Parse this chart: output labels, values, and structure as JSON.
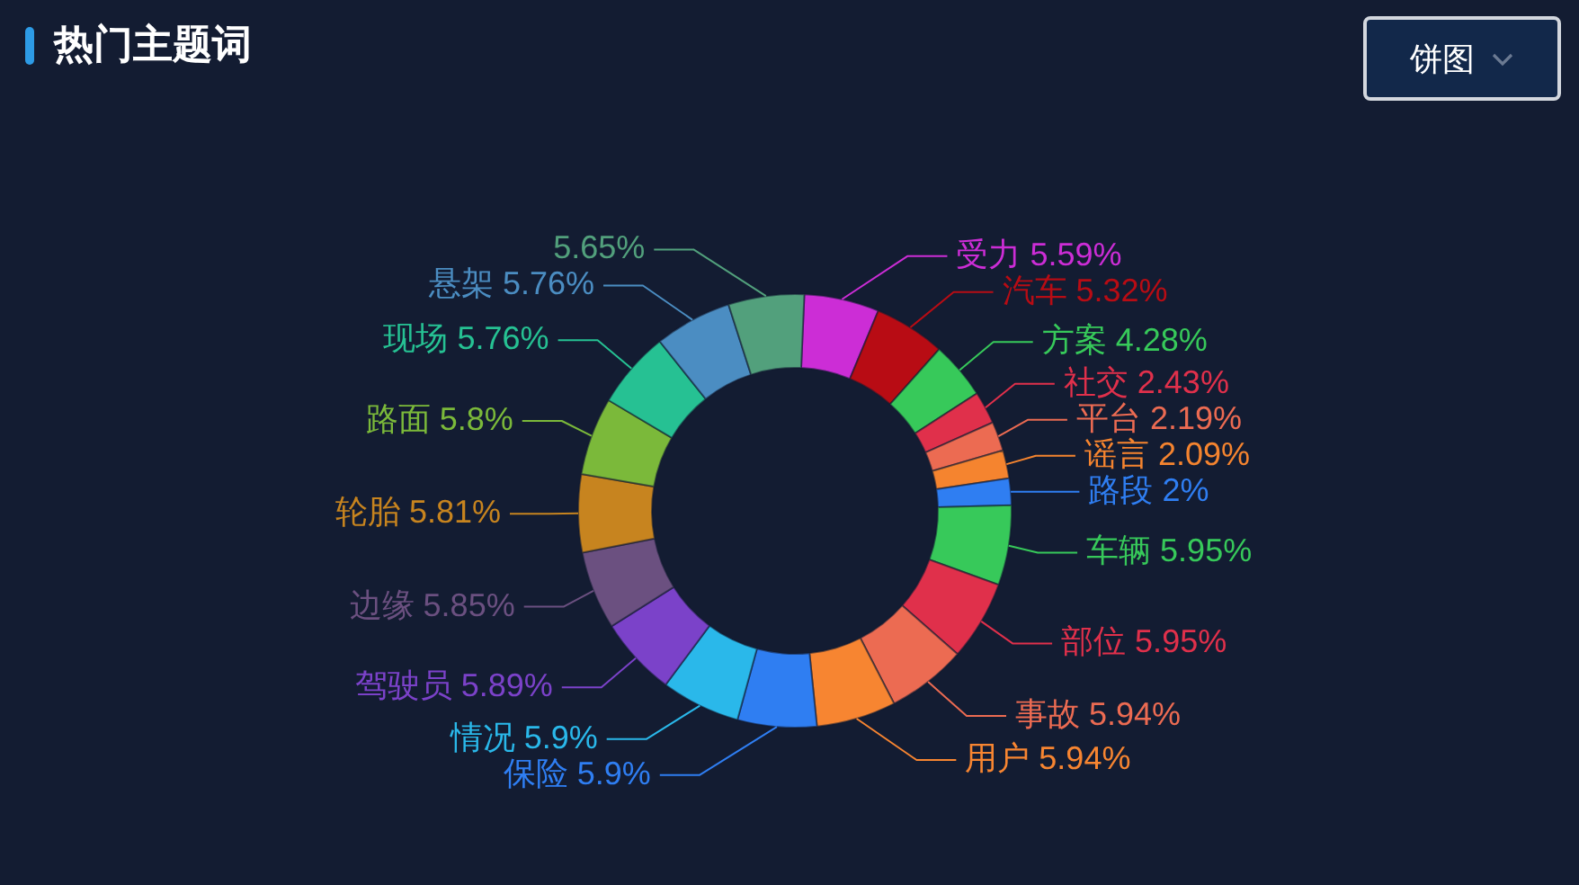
{
  "chart_data": {
    "type": "donut",
    "title": "热门主题词",
    "categories": [
      "受力",
      "汽车",
      "方案",
      "社交",
      "平台",
      "谣言",
      "路段",
      "车辆",
      "部位",
      "事故",
      "用户",
      "保险",
      "情况",
      "驾驶员",
      "边缘",
      "轮胎",
      "路面",
      "现场",
      "悬架",
      null
    ],
    "values": [
      5.59,
      5.32,
      4.28,
      2.43,
      2.19,
      2.09,
      2,
      5.95,
      5.95,
      5.94,
      5.94,
      5.9,
      5.9,
      5.89,
      5.85,
      5.81,
      5.8,
      5.76,
      5.76,
      5.65
    ],
    "value_labels": [
      "5.59%",
      "5.32%",
      "4.28%",
      "2.43%",
      "2.19%",
      "2.09%",
      "2%",
      "5.95%",
      "5.95%",
      "5.94%",
      "5.94%",
      "5.9%",
      "5.9%",
      "5.89%",
      "5.85%",
      "5.81%",
      "5.8%",
      "5.76%",
      "5.76%",
      "5.65%"
    ],
    "colors": [
      "#cc2dd6",
      "#b80c14",
      "#37c95a",
      "#e0304b",
      "#ec6b52",
      "#f5842f",
      "#2f7ef2",
      "#37c95a",
      "#e0304b",
      "#ec6b52",
      "#f78531",
      "#2f7ef2",
      "#2ab8ea",
      "#7b42c9",
      "#6b5080",
      "#c7841f",
      "#7bb93a",
      "#26c193",
      "#4b8dc2",
      "#52a07c"
    ],
    "legend": false,
    "annotations": [
      "饼图"
    ]
  }
}
